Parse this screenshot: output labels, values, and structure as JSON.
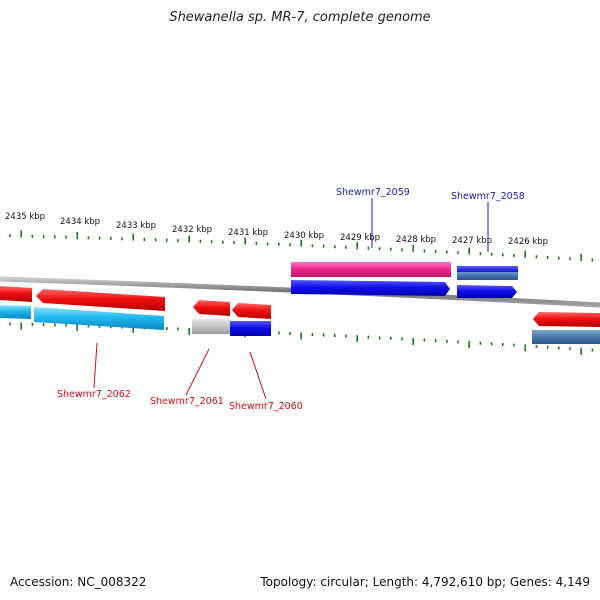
{
  "title": "Shewanella sp. MR-7, complete genome",
  "footer": {
    "accession": "Accession: NC_008322",
    "summary": "Topology: circular; Length: 4,792,610 bp; Genes: 4,149"
  },
  "tick_labels": [
    "2435 kbp",
    "2434 kbp",
    "2433 kbp",
    "2432 kbp",
    "2431 kbp",
    "2430 kbp",
    "2429 kbp",
    "2428 kbp",
    "2427 kbp",
    "2426 kbp"
  ],
  "gene_labels": {
    "Shewmr7_2059": "Shewmr7_2059",
    "Shewmr7_2058": "Shewmr7_2058",
    "Shewmr7_2062": "Shewmr7_2062",
    "Shewmr7_2061": "Shewmr7_2061",
    "Shewmr7_2060": "Shewmr7_2060"
  },
  "colors": {
    "forward_gene": "#1f1fe6",
    "reverse_gene": "#e81010",
    "forward_cds": "#e8308a",
    "reverse_cds": "#30b8e8",
    "backbone": "#888888",
    "tick": "#1a7a1a",
    "label_forward": "#1a1ab0",
    "label_reverse": "#cc1010"
  }
}
